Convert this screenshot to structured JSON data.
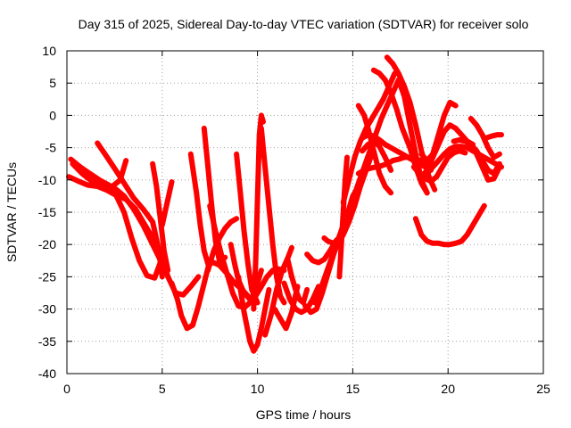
{
  "chart_data": {
    "type": "line",
    "title": "Day 315 of 2025, Sidereal Day-to-day VTEC variation (SDTVAR) for receiver solo",
    "xlabel": "GPS time / hours",
    "ylabel": "SDTVAR / TECUs",
    "xlim": [
      0,
      25
    ],
    "ylim": [
      -40,
      10
    ],
    "x_ticks": [
      0,
      5,
      10,
      15,
      20,
      25
    ],
    "y_ticks": [
      -40,
      -35,
      -30,
      -25,
      -20,
      -15,
      -10,
      -5,
      0,
      5,
      10
    ],
    "grid": true,
    "color": "#ff0000",
    "series": [
      {
        "name": "s1",
        "x": [
          0.1,
          0.6,
          1.1,
          1.6,
          2.1,
          2.6,
          3.1,
          3.6,
          4.1,
          4.6,
          5.0,
          5.3,
          5.7,
          6.1,
          6.5,
          6.9
        ],
        "y": [
          -9.5,
          -10.2,
          -10.8,
          -11.0,
          -11.6,
          -12.4,
          -13.0,
          -14.5,
          -17.0,
          -19.5,
          -22.0,
          -25.0,
          -27.5,
          -27.8,
          -26.5,
          -25.0
        ]
      },
      {
        "name": "s2",
        "x": [
          0.2,
          0.7,
          1.2,
          1.7,
          2.2,
          2.6,
          3.0,
          3.5,
          4.0,
          4.5,
          5.0
        ],
        "y": [
          -6.8,
          -8.0,
          -9.0,
          -10.0,
          -10.8,
          -11.5,
          -12.5,
          -14.5,
          -17.0,
          -20.0,
          -23.0
        ]
      },
      {
        "name": "s3",
        "x": [
          0.3,
          0.8,
          1.3,
          1.8,
          2.3,
          2.8,
          3.1
        ],
        "y": [
          -7.5,
          -9.0,
          -10.2,
          -11.0,
          -11.2,
          -10.0,
          -7.0
        ]
      },
      {
        "name": "s4",
        "x": [
          1.6,
          2.0,
          2.5,
          3.0,
          3.5,
          4.0,
          4.5,
          4.8,
          5.0
        ],
        "y": [
          -4.3,
          -6.0,
          -8.2,
          -10.5,
          -12.8,
          -14.5,
          -16.5,
          -20.5,
          -25.0
        ]
      },
      {
        "name": "s5",
        "x": [
          2.6,
          3.0,
          3.4,
          3.8,
          4.2,
          4.6,
          5.0
        ],
        "y": [
          -12.5,
          -15.0,
          -19.0,
          -22.5,
          -24.8,
          -25.2,
          -22.0
        ]
      },
      {
        "name": "s6",
        "x": [
          4.5,
          4.7,
          4.9,
          5.1,
          5.3
        ],
        "y": [
          -7.5,
          -11.0,
          -16.0,
          -21.0,
          -24.0
        ]
      },
      {
        "name": "s7",
        "x": [
          5.0,
          5.3,
          5.5
        ],
        "y": [
          -17.0,
          -13.0,
          -10.3
        ]
      },
      {
        "name": "s8",
        "x": [
          5.5,
          5.8,
          6.0,
          6.3,
          6.6,
          6.9,
          7.2,
          7.5
        ],
        "y": [
          -26.0,
          -28.5,
          -31.0,
          -33.0,
          -32.5,
          -29.5,
          -26.0,
          -22.5
        ]
      },
      {
        "name": "s9",
        "x": [
          6.5,
          6.8,
          7.0,
          7.2,
          7.4,
          7.7,
          8.0,
          8.4,
          8.8,
          9.2,
          9.5,
          9.8
        ],
        "y": [
          -6.0,
          -12.0,
          -17.0,
          -21.0,
          -23.0,
          -22.8,
          -23.2,
          -24.5,
          -26.0,
          -27.0,
          -28.0,
          -28.8
        ]
      },
      {
        "name": "s10",
        "x": [
          7.2,
          7.4,
          7.6,
          7.8,
          8.0,
          8.3
        ],
        "y": [
          -2.0,
          -8.0,
          -14.0,
          -19.5,
          -22.5,
          -22.0
        ]
      },
      {
        "name": "s11",
        "x": [
          7.4,
          7.7,
          8.0,
          8.3,
          8.6,
          8.9
        ],
        "y": [
          -24.0,
          -21.0,
          -19.0,
          -17.5,
          -16.5,
          -16.0
        ]
      },
      {
        "name": "s12",
        "x": [
          7.5,
          7.8,
          8.1,
          8.4,
          8.7,
          9.0,
          9.3,
          9.6,
          9.9,
          10.2
        ],
        "y": [
          -14.0,
          -18.0,
          -21.5,
          -24.5,
          -27.5,
          -29.5,
          -29.8,
          -29.0,
          -27.0,
          -24.0
        ]
      },
      {
        "name": "s13",
        "x": [
          8.6,
          8.8,
          9.0,
          9.3,
          9.6,
          9.9,
          10.2,
          10.5,
          10.8,
          11.1,
          11.4
        ],
        "y": [
          -20.0,
          -23.0,
          -25.5,
          -27.5,
          -28.5,
          -28.0,
          -26.5,
          -25.0,
          -24.0,
          -23.8,
          -24.0
        ]
      },
      {
        "name": "s14",
        "x": [
          8.9,
          9.1,
          9.3,
          9.5,
          9.7,
          10.0
        ],
        "y": [
          -6.0,
          -12.0,
          -18.0,
          -23.0,
          -27.0,
          -29.0
        ]
      },
      {
        "name": "s15",
        "x": [
          9.0,
          9.3,
          9.6,
          9.8,
          10.0,
          10.2,
          10.4,
          10.6
        ],
        "y": [
          -25.0,
          -30.5,
          -35.0,
          -36.5,
          -35.5,
          -33.0,
          -30.0,
          -27.0
        ]
      },
      {
        "name": "s16",
        "x": [
          9.8,
          9.9,
          10.0,
          10.1,
          10.2,
          10.3
        ],
        "y": [
          -30.0,
          -23.0,
          -13.0,
          -3.0,
          0.0,
          -1.0
        ]
      },
      {
        "name": "s17",
        "x": [
          10.2,
          10.4,
          10.6,
          10.8,
          11.0,
          11.2,
          11.4
        ],
        "y": [
          -2.0,
          -8.0,
          -14.0,
          -20.0,
          -25.0,
          -28.0,
          -29.0
        ]
      },
      {
        "name": "s18",
        "x": [
          10.4,
          10.7,
          11.0,
          11.3,
          11.6,
          11.8
        ],
        "y": [
          -34.0,
          -31.0,
          -27.0,
          -24.0,
          -22.0,
          -20.5
        ]
      },
      {
        "name": "s19",
        "x": [
          10.9,
          11.2,
          11.5,
          11.8,
          12.1
        ],
        "y": [
          -30.0,
          -31.5,
          -33.0,
          -30.5,
          -26.5
        ]
      },
      {
        "name": "s20",
        "x": [
          11.6,
          11.8,
          12.0,
          12.2,
          12.4,
          12.6
        ],
        "y": [
          -22.5,
          -25.0,
          -27.0,
          -28.5,
          -29.0,
          -27.0
        ]
      },
      {
        "name": "s21",
        "x": [
          11.4,
          11.7,
          12.0,
          12.3,
          12.6,
          12.9,
          13.2
        ],
        "y": [
          -26.0,
          -28.5,
          -30.0,
          -30.5,
          -30.0,
          -28.5,
          -26.5
        ]
      },
      {
        "name": "s22",
        "x": [
          12.5,
          12.8,
          13.1,
          13.4,
          13.7,
          14.0,
          14.3,
          14.6,
          14.9
        ],
        "y": [
          -29.5,
          -30.5,
          -30.0,
          -27.5,
          -24.5,
          -21.5,
          -19.0,
          -17.0,
          -15.5
        ]
      },
      {
        "name": "s23",
        "x": [
          12.6,
          12.9,
          13.2,
          13.5,
          13.8,
          14.1,
          14.4
        ],
        "y": [
          -21.5,
          -22.5,
          -22.8,
          -22.3,
          -21.0,
          -19.5,
          -18.5
        ]
      },
      {
        "name": "s24",
        "x": [
          13.0,
          13.3,
          13.6,
          13.9,
          14.2,
          14.5,
          14.8,
          15.1,
          15.4,
          15.7,
          16.0
        ],
        "y": [
          -29.0,
          -27.0,
          -24.5,
          -22.0,
          -20.0,
          -18.5,
          -16.5,
          -14.0,
          -11.0,
          -8.5,
          -6.0
        ]
      },
      {
        "name": "s25",
        "x": [
          13.5,
          13.7,
          14.0,
          14.3,
          14.6,
          14.9,
          15.1
        ],
        "y": [
          -19.0,
          -19.5,
          -19.8,
          -19.0,
          -17.5,
          -14.5,
          -12.0
        ]
      },
      {
        "name": "s26",
        "x": [
          14.0,
          14.2,
          14.5,
          14.8,
          15.0,
          15.2
        ],
        "y": [
          -21.0,
          -19.5,
          -17.0,
          -14.5,
          -12.5,
          -11.5
        ]
      },
      {
        "name": "s27",
        "x": [
          14.3,
          14.4,
          14.5,
          14.6,
          14.7
        ],
        "y": [
          -25.0,
          -20.0,
          -15.0,
          -10.0,
          -6.5
        ]
      },
      {
        "name": "s28",
        "x": [
          14.5,
          14.8,
          15.1,
          15.4,
          15.7,
          16.0,
          16.3,
          16.6,
          16.9,
          17.2
        ],
        "y": [
          -13.5,
          -10.0,
          -6.5,
          -4.0,
          -2.0,
          -0.5,
          1.0,
          2.5,
          4.5,
          6.5
        ]
      },
      {
        "name": "s29",
        "x": [
          15.0,
          15.3,
          15.6,
          15.9,
          16.2,
          16.5,
          16.8,
          17.1,
          17.4,
          17.7,
          18.0,
          18.3,
          18.6,
          18.9
        ],
        "y": [
          -13.0,
          -10.5,
          -8.0,
          -5.5,
          -3.0,
          -0.5,
          1.5,
          3.5,
          5.5,
          3.0,
          -1.5,
          -6.0,
          -10.0,
          -12.0
        ]
      },
      {
        "name": "s30",
        "x": [
          15.3,
          15.6,
          15.9,
          16.2,
          16.5,
          16.8,
          17.1,
          17.4,
          17.7,
          18.0,
          18.3,
          18.6
        ],
        "y": [
          -9.0,
          -8.5,
          -8.2,
          -8.0,
          -7.8,
          -7.5,
          -7.0,
          -6.8,
          -6.5,
          -6.5,
          -6.8,
          -7.0
        ]
      },
      {
        "name": "s31",
        "x": [
          15.5,
          15.8,
          16.1,
          16.4,
          16.7,
          17.0
        ],
        "y": [
          -5.5,
          -4.5,
          -4.0,
          -4.8,
          -6.5,
          -8.5
        ]
      },
      {
        "name": "s32",
        "x": [
          15.5,
          15.8,
          16.1,
          16.4,
          16.7,
          17.0,
          17.3,
          17.6,
          17.9,
          18.2,
          18.5,
          18.8,
          19.1
        ],
        "y": [
          -3.5,
          -3.0,
          -3.2,
          -3.8,
          -4.5,
          -5.0,
          -5.5,
          -6.0,
          -6.5,
          -7.0,
          -7.5,
          -8.0,
          -8.5
        ]
      },
      {
        "name": "s33",
        "x": [
          15.3,
          15.6,
          15.8,
          16.1,
          16.4,
          16.7,
          17.0
        ],
        "y": [
          1.5,
          0.0,
          -2.0,
          -5.5,
          -9.0,
          -11.0,
          -12.0
        ]
      },
      {
        "name": "s34",
        "x": [
          16.1,
          16.4,
          16.7,
          17.0,
          17.3,
          17.6,
          18.0,
          18.3,
          18.6,
          18.9
        ],
        "y": [
          7.0,
          6.5,
          5.5,
          3.5,
          1.0,
          -2.0,
          -5.0,
          -8.0,
          -10.5,
          -12.0
        ]
      },
      {
        "name": "s35",
        "x": [
          16.8,
          17.1,
          17.4,
          17.7,
          18.0,
          18.3,
          18.6,
          19.0,
          19.3
        ],
        "y": [
          9.0,
          8.0,
          6.5,
          4.5,
          2.0,
          -1.5,
          -5.5,
          -9.5,
          -11.5
        ]
      },
      {
        "name": "s36",
        "x": [
          18.2,
          18.5,
          18.8,
          19.1,
          19.4,
          19.7,
          20.0,
          20.3,
          20.6,
          20.9
        ],
        "y": [
          -8.0,
          -9.0,
          -9.8,
          -10.2,
          -9.5,
          -8.0,
          -6.5,
          -5.8,
          -5.5,
          -5.8
        ]
      },
      {
        "name": "s37",
        "x": [
          18.6,
          18.9,
          19.2,
          19.5,
          19.8,
          20.1,
          20.4
        ],
        "y": [
          -6.0,
          -7.0,
          -6.0,
          -3.0,
          0.0,
          2.0,
          1.5
        ]
      },
      {
        "name": "s38",
        "x": [
          18.6,
          18.9,
          19.2,
          19.5,
          19.8,
          20.1,
          20.4,
          20.7,
          21.0,
          21.3
        ],
        "y": [
          -9.5,
          -8.5,
          -6.5,
          -4.5,
          -2.5,
          -1.5,
          -2.0,
          -3.0,
          -4.0,
          -4.5
        ]
      },
      {
        "name": "s39",
        "x": [
          18.9,
          19.2,
          19.5,
          19.8,
          20.1,
          20.4,
          20.7,
          21.0,
          21.3,
          21.6,
          21.9,
          22.2,
          22.5,
          22.8
        ],
        "y": [
          -9.0,
          -8.0,
          -7.0,
          -6.0,
          -5.2,
          -4.8,
          -4.8,
          -5.0,
          -5.5,
          -6.0,
          -6.5,
          -7.0,
          -7.5,
          -8.0
        ]
      },
      {
        "name": "s40",
        "x": [
          18.3,
          18.6,
          18.9,
          19.2,
          19.5,
          19.8,
          20.1,
          20.4,
          20.7,
          21.0,
          21.3,
          21.6,
          21.9
        ],
        "y": [
          -16.0,
          -18.5,
          -19.5,
          -19.8,
          -19.8,
          -20.0,
          -20.0,
          -19.8,
          -19.5,
          -18.5,
          -17.0,
          -15.5,
          -14.0
        ]
      },
      {
        "name": "s41",
        "x": [
          20.3,
          20.6,
          20.9,
          21.2,
          21.5,
          21.8,
          22.1,
          22.4,
          22.7
        ],
        "y": [
          -4.0,
          -3.8,
          -4.0,
          -4.5,
          -5.5,
          -7.0,
          -8.5,
          -9.0,
          -7.5
        ]
      },
      {
        "name": "s42",
        "x": [
          21.2,
          21.5,
          21.8,
          22.1,
          22.4,
          22.7
        ],
        "y": [
          -0.5,
          -1.5,
          -3.0,
          -5.0,
          -6.5,
          -6.0
        ]
      },
      {
        "name": "s43",
        "x": [
          21.5,
          21.8,
          22.1,
          22.4,
          22.7
        ],
        "y": [
          -6.0,
          -8.0,
          -10.0,
          -9.8,
          -8.0
        ]
      },
      {
        "name": "s44",
        "x": [
          22.0,
          22.3,
          22.6,
          22.8
        ],
        "y": [
          -3.5,
          -3.2,
          -3.0,
          -3.0
        ]
      }
    ]
  }
}
